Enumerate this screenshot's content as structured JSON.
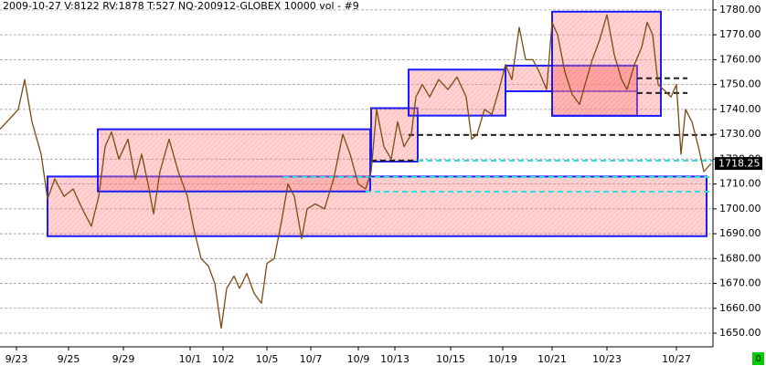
{
  "chart_data": {
    "type": "line",
    "title": "2009-10-27  V:8122  RV:1878  T:527  NQ-200912-GLOBEX  10000 vol - #9",
    "x": [
      0,
      10,
      20,
      27,
      35,
      45,
      52,
      60,
      70,
      80,
      90,
      100,
      108,
      115,
      122,
      130,
      140,
      148,
      155,
      162,
      168,
      175,
      185,
      195,
      205,
      212,
      220,
      228,
      235,
      242,
      248,
      256,
      262,
      270,
      278,
      286,
      292,
      300,
      308,
      315,
      322,
      330,
      336,
      345,
      355,
      365,
      375,
      383,
      392,
      400,
      406,
      412,
      420,
      428,
      435,
      442,
      450,
      455,
      462,
      470,
      480,
      490,
      500,
      510,
      516,
      522,
      530,
      538,
      546,
      553,
      560,
      568,
      575,
      583,
      590,
      598,
      604,
      610,
      618,
      626,
      634,
      640,
      648,
      656,
      664,
      672,
      680,
      686,
      694,
      702,
      708,
      714,
      720,
      726,
      734,
      740,
      745,
      750,
      757,
      764,
      770,
      778
    ],
    "series": [
      {
        "color": "#7a4a10",
        "values": [
          1732,
          1736,
          1740,
          1752,
          1735,
          1722,
          1704,
          1712,
          1705,
          1708,
          1700,
          1693,
          1705,
          1725,
          1731,
          1720,
          1728,
          1712,
          1722,
          1710,
          1698,
          1715,
          1728,
          1715,
          1705,
          1692,
          1680,
          1677,
          1670,
          1652,
          1668,
          1673,
          1668,
          1674,
          1666,
          1662,
          1678,
          1680,
          1695,
          1710,
          1705,
          1688,
          1700,
          1702,
          1700,
          1712,
          1730,
          1722,
          1710,
          1708,
          1715,
          1740,
          1725,
          1720,
          1735,
          1725,
          1730,
          1745,
          1750,
          1745,
          1752,
          1748,
          1753,
          1745,
          1728,
          1730,
          1740,
          1738,
          1748,
          1758,
          1752,
          1773,
          1760,
          1760,
          1755,
          1748,
          1775,
          1770,
          1755,
          1746,
          1742,
          1750,
          1760,
          1768,
          1778,
          1762,
          1752,
          1748,
          1758,
          1765,
          1775,
          1770,
          1750,
          1748,
          1745,
          1750,
          1722,
          1740,
          1735,
          1725,
          1715,
          1718.25
        ]
      }
    ],
    "last_price": 1718.25,
    "zones": [
      {
        "x": [
          52,
          773
        ],
        "y": [
          1689,
          1713
        ]
      },
      {
        "x": [
          107,
          405
        ],
        "y": [
          1707,
          1732
        ]
      },
      {
        "x": [
          406,
          457
        ],
        "y": [
          1719,
          1740.5
        ]
      },
      {
        "x": [
          447,
          553
        ],
        "y": [
          1737.5,
          1756
        ]
      },
      {
        "x": [
          553,
          697
        ],
        "y": [
          1747.3,
          1757.6
        ]
      },
      {
        "x": [
          604,
          697
        ],
        "y": [
          1737.5,
          1757.6
        ]
      },
      {
        "x": [
          604,
          723
        ],
        "y": [
          1737.4,
          1779.3
        ]
      }
    ],
    "levels": [
      {
        "value": 1729.7,
        "x": [
          447,
          780
        ],
        "color": "#222222"
      },
      {
        "value": 1719.4,
        "x": [
          406,
          457
        ],
        "color": "#222222"
      },
      {
        "value": 1719.4,
        "x": [
          457,
          780
        ],
        "color": "#33dddd"
      },
      {
        "value": 1712.8,
        "x": [
          310,
          780
        ],
        "color": "#33dddd"
      },
      {
        "value": 1706.9,
        "x": [
          400,
          780
        ],
        "color": "#33dddd"
      },
      {
        "value": 1752.5,
        "x": [
          697,
          752
        ],
        "color": "#222222"
      },
      {
        "value": 1746.6,
        "x": [
          697,
          752
        ],
        "color": "#222222"
      }
    ],
    "zone_fill": "#ff8080",
    "zone_stroke": "#1a1aff",
    "xlim": [
      0,
      780
    ],
    "ylim": [
      1644.5,
      1784
    ],
    "xticks": [
      {
        "value": 18,
        "label": "9/23"
      },
      {
        "value": 75,
        "label": "9/25"
      },
      {
        "value": 135,
        "label": "9/29"
      },
      {
        "value": 208,
        "label": "10/1"
      },
      {
        "value": 244,
        "label": "10/2"
      },
      {
        "value": 292,
        "label": "10/5"
      },
      {
        "value": 340,
        "label": "10/7"
      },
      {
        "value": 392,
        "label": "10/9"
      },
      {
        "value": 432,
        "label": "10/13"
      },
      {
        "value": 493,
        "label": "10/15"
      },
      {
        "value": 550,
        "label": "10/19"
      },
      {
        "value": 604,
        "label": "10/21"
      },
      {
        "value": 664,
        "label": "10/23"
      },
      {
        "value": 740,
        "label": "10/27"
      }
    ],
    "yticks": [
      {
        "value": 1650,
        "label": "1650.00"
      },
      {
        "value": 1660,
        "label": "1660.00"
      },
      {
        "value": 1670,
        "label": "1670.00"
      },
      {
        "value": 1680,
        "label": "1680.00"
      },
      {
        "value": 1690,
        "label": "1690.00"
      },
      {
        "value": 1700,
        "label": "1700.00"
      },
      {
        "value": 1710,
        "label": "1710.00"
      },
      {
        "value": 1720,
        "label": "1720.00"
      },
      {
        "value": 1730,
        "label": "1730.00"
      },
      {
        "value": 1740,
        "label": "1740.00"
      },
      {
        "value": 1750,
        "label": "1750.00"
      },
      {
        "value": 1760,
        "label": "1760.00"
      },
      {
        "value": 1770,
        "label": "1770.00"
      },
      {
        "value": 1780,
        "label": "1780.00"
      }
    ],
    "grid": true,
    "status": "0"
  }
}
